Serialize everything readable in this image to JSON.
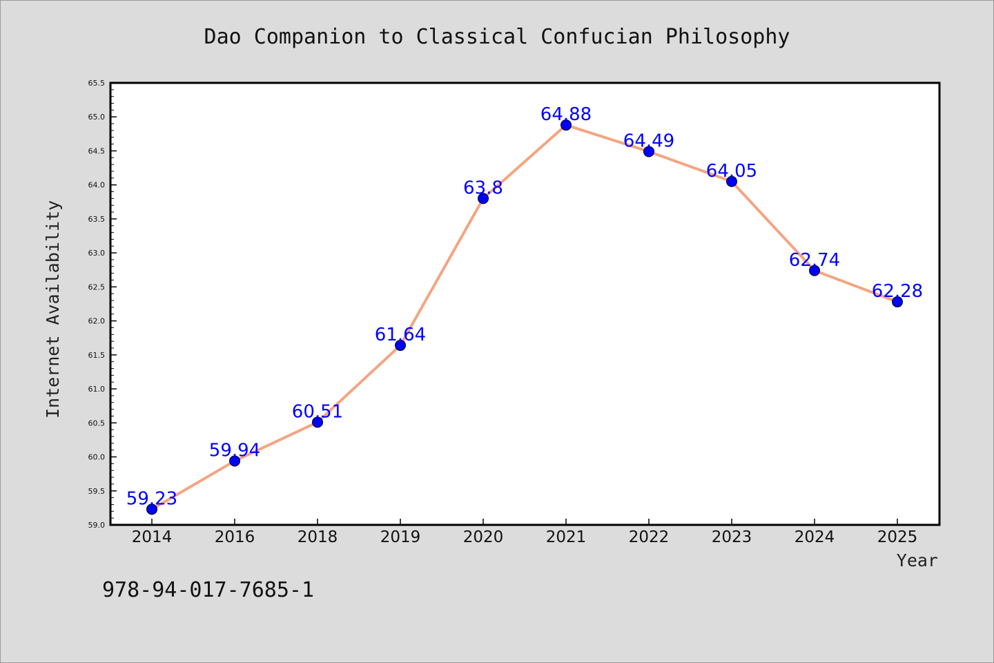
{
  "chart_data": {
    "type": "line",
    "title": "Dao Companion to Classical Confucian Philosophy",
    "xlabel": "Year",
    "ylabel": "Internet Availability",
    "categories": [
      "2014",
      "2016",
      "2018",
      "2019",
      "2020",
      "2021",
      "2022",
      "2023",
      "2024",
      "2025"
    ],
    "series": [
      {
        "values": [
          59.23,
          59.94,
          60.51,
          61.64,
          63.8,
          64.88,
          64.49,
          64.05,
          62.74,
          62.28
        ],
        "labels": [
          "59.23",
          "59.94",
          "60.51",
          "61.64",
          "63.8",
          "64.88",
          "64.49",
          "64.05",
          "62.74",
          "62.28"
        ],
        "line_color": "#f4a582",
        "marker_color": "#0000ff"
      }
    ],
    "ylim": [
      59.0,
      65.5
    ],
    "yticks": [
      "59.0",
      "59.5",
      "60.0",
      "60.5",
      "61.0",
      "61.5",
      "62.0",
      "62.5",
      "63.0",
      "63.5",
      "64.0",
      "64.5",
      "65.0",
      "65.5"
    ],
    "grid": false,
    "background": "#dcdcdc",
    "plot_background": "#ffffff"
  },
  "footer": {
    "code": "978-94-017-7685-1"
  }
}
